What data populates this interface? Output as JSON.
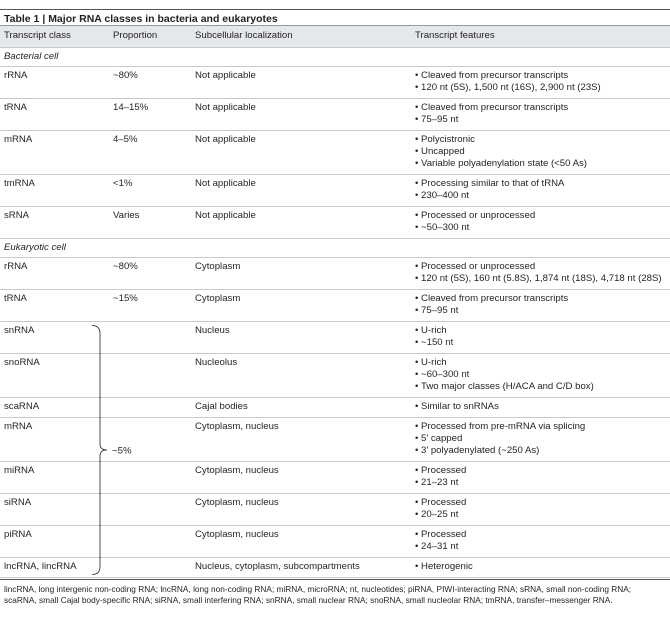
{
  "table": {
    "label": "Table 1 |",
    "title": "Major RNA classes in bacteria and eukaryotes",
    "columns": [
      "Transcript class",
      "Proportion",
      "Subcellular localization",
      "Transcript features"
    ],
    "sections": [
      {
        "name": "Bacterial cell",
        "rows": [
          {
            "class": "rRNA",
            "proportion": "~80%",
            "localization": "Not applicable",
            "features": [
              "Cleaved from precursor transcripts",
              "120 nt (5S), 1,500 nt (16S), 2,900 nt (23S)"
            ]
          },
          {
            "class": "tRNA",
            "proportion": "14–15%",
            "localization": "Not applicable",
            "features": [
              "Cleaved from precursor transcripts",
              "75–95 nt"
            ]
          },
          {
            "class": "mRNA",
            "proportion": "4–5%",
            "localization": "Not applicable",
            "features": [
              "Polycistronic",
              "Uncapped",
              "Variable polyadenylation state (<50 As)"
            ]
          },
          {
            "class": "tmRNA",
            "proportion": "<1%",
            "localization": "Not applicable",
            "features": [
              "Processing similar to that of tRNA",
              "230–400 nt"
            ]
          },
          {
            "class": "sRNA",
            "proportion": "Varies",
            "localization": "Not applicable",
            "features": [
              "Processed or unprocessed",
              "~50–300 nt"
            ]
          }
        ]
      },
      {
        "name": "Eukaryotic cell",
        "group_proportion": "~5%",
        "rows": [
          {
            "class": "rRNA",
            "proportion": "~80%",
            "localization": "Cytoplasm",
            "features": [
              "Processed or unprocessed",
              "120 nt (5S), 160 nt (5.8S), 1,874 nt (18S), 4,718 nt (28S)"
            ]
          },
          {
            "class": "tRNA",
            "proportion": "~15%",
            "localization": "Cytoplasm",
            "features": [
              "Cleaved from precursor transcripts",
              "75–95 nt"
            ]
          },
          {
            "class": "snRNA",
            "localization": "Nucleus",
            "features": [
              "U-rich",
              "~150 nt"
            ]
          },
          {
            "class": "snoRNA",
            "localization": "Nucleolus",
            "features": [
              "U-rich",
              "~60–300 nt",
              "Two major classes (H/ACA and C/D box)"
            ]
          },
          {
            "class": "scaRNA",
            "localization": "Cajal bodies",
            "features": [
              "Similar to snRNAs"
            ]
          },
          {
            "class": "mRNA",
            "localization": "Cytoplasm, nucleus",
            "features": [
              "Processed from pre-mRNA via splicing",
              "5′ capped",
              "3′ polyadenylated (~250 As)"
            ]
          },
          {
            "class": "miRNA",
            "localization": "Cytoplasm, nucleus",
            "features": [
              "Processed",
              "21–23 nt"
            ]
          },
          {
            "class": "siRNA",
            "localization": "Cytoplasm, nucleus",
            "features": [
              "Processed",
              "20–25 nt"
            ]
          },
          {
            "class": "piRNA",
            "localization": "Cytoplasm, nucleus",
            "features": [
              "Processed",
              "24–31 nt"
            ]
          },
          {
            "class": "lncRNA, lincRNA",
            "localization": "Nucleus, cytoplasm, subcompartments",
            "features": [
              "Heterogenic"
            ]
          }
        ]
      }
    ],
    "footnote": "lincRNA, long intergenic non-coding RNA; lncRNA, long non-coding RNA; miRNA, microRNA; nt, nucleotides; piRNA, PIWI-interacting RNA; sRNA, small non-coding RNA; scaRNA, small Cajal body-specific RNA; siRNA, small interfering RNA; snRNA, small nuclear RNA; snoRNA, small nucleolar RNA; tmRNA, transfer–messenger RNA."
  }
}
